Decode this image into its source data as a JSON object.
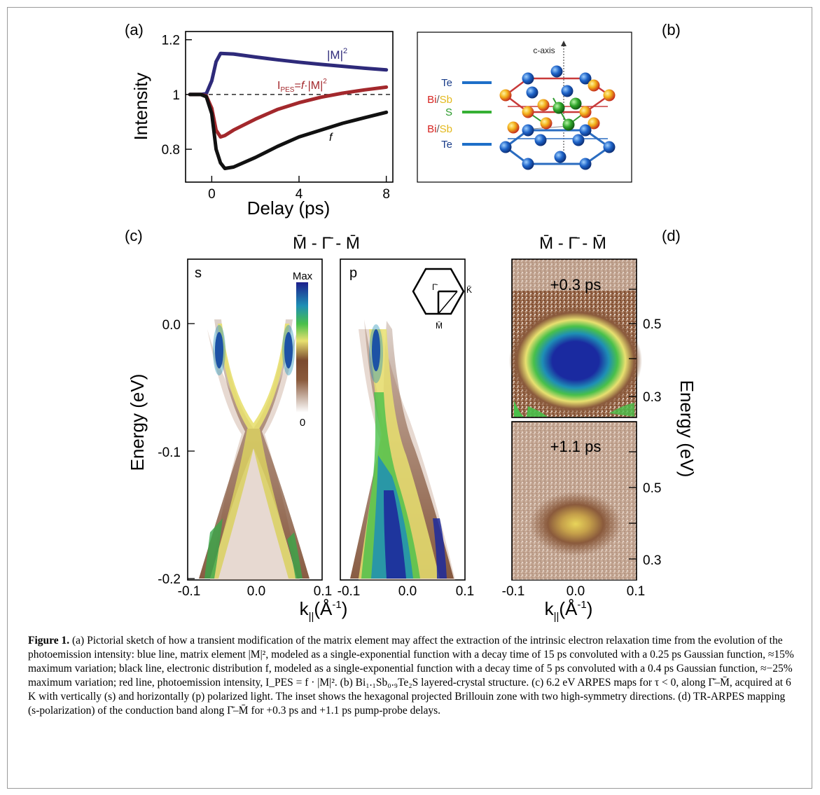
{
  "panel_a": {
    "label": "(a)",
    "ylabel": "Intensity",
    "xlabel": "Delay (ps)",
    "yticks": [
      "0.8",
      "1",
      "1.2"
    ],
    "xticks": [
      "0",
      "4",
      "8"
    ],
    "curve_labels": {
      "m2_text": "|M|",
      "m2_sup": "2",
      "ipes_main": "I",
      "ipes_sub": "PES",
      "ipes_mid": "=",
      "ipes_f": "f",
      "ipes_dot": "·",
      "ipes_m": "|M|",
      "ipes_sup": "2",
      "f": "f"
    },
    "colors": {
      "m2": "#2e2a7a",
      "ipes": "#a3282c",
      "f": "#111111"
    }
  },
  "panel_b": {
    "label": "(b)",
    "axis_label": "c-axis",
    "layers": [
      {
        "a": "Te",
        "b": ""
      },
      {
        "a": "Bi",
        "b": "Sb"
      },
      {
        "a": "S",
        "b": ""
      },
      {
        "a": "Bi",
        "b": "Sb"
      },
      {
        "a": "Te",
        "b": ""
      }
    ],
    "slash": "/"
  },
  "panel_c": {
    "label": "(c)",
    "direction": "M̄  -  Γ̄  -  M̄",
    "ylabel": "Energy (eV)",
    "yticks": [
      "0.0",
      "-0.1",
      "-0.2"
    ],
    "xticks": [
      "-0.1",
      "0.0",
      "0.1"
    ],
    "xlabel_k": "k",
    "xlabel_sub": "||",
    "xlabel_unit": "(Å",
    "xlabel_sup": "-1",
    "xlabel_end": ")",
    "pol_s": "s",
    "pol_p": "p",
    "colorbar_max": "Max",
    "colorbar_min": "0",
    "inset_gamma": "Γ̄",
    "inset_k": "K̄",
    "inset_m": "M̄"
  },
  "panel_d": {
    "label": "(d)",
    "direction": "M̄  -  Γ̄  -  M̄",
    "ylabel": "Energy (eV)",
    "yticks": [
      "0.5",
      "0.3"
    ],
    "xticks": [
      "-0.1",
      "0.0",
      "0.1"
    ],
    "delay_top": "+0.3 ps",
    "delay_bottom": "+1.1 ps"
  },
  "caption": {
    "label": "Figure 1.",
    "text": "(a) Pictorial sketch of how a transient modification of the matrix element may affect the extraction of the intrinsic electron relaxation time from the evolution of the photoemission intensity: blue line, matrix element |M|², modeled as a single-exponential function with a decay time of 15 ps convoluted with a 0.25 ps Gaussian function, ≈15% maximum variation; black line, electronic distribution f, modeled as a single-exponential function with a decay time of 5 ps convoluted with a 0.4 ps Gaussian function, ≈−25% maximum variation; red line, photoemission intensity, I_PES = f · |M|². (b) Bi₁.₁Sb₀.₉Te₂S layered-crystal structure. (c) 6.2 eV ARPES maps for τ < 0, along Γ̄–M̄, acquired at 6 K with vertically (s) and horizontally (p) polarized light. The inset shows the hexagonal projected Brillouin zone with two high-symmetry directions. (d) TR-ARPES mapping (s-polarization) of the conduction band along Γ̄–M̄ for +0.3 ps and +1.1 ps pump-probe delays."
  },
  "chart_data": [
    {
      "type": "line",
      "title": "",
      "xlabel": "Delay (ps)",
      "ylabel": "Intensity",
      "xlim": [
        -1.2,
        8.3
      ],
      "ylim": [
        0.68,
        1.23
      ],
      "xticks": [
        0,
        4,
        8
      ],
      "yticks": [
        0.8,
        1,
        1.2
      ],
      "reference_line": 1.0,
      "series": [
        {
          "name": "|M|²",
          "x": [
            -1,
            -0.5,
            -0.25,
            0,
            0.2,
            0.4,
            1,
            2,
            3,
            4,
            5,
            6,
            7,
            8
          ],
          "values": [
            1,
            1,
            1.003,
            1.05,
            1.12,
            1.15,
            1.148,
            1.137,
            1.127,
            1.118,
            1.11,
            1.103,
            1.096,
            1.09
          ]
        },
        {
          "name": "I_PES=f·|M|²",
          "x": [
            -1,
            -0.5,
            -0.25,
            0,
            0.2,
            0.4,
            0.6,
            1,
            2,
            3,
            4,
            5,
            6,
            7,
            8
          ],
          "values": [
            1,
            1,
            0.995,
            0.95,
            0.87,
            0.845,
            0.85,
            0.87,
            0.91,
            0.945,
            0.97,
            0.99,
            1.005,
            1.017,
            1.027
          ]
        },
        {
          "name": "f",
          "x": [
            -1,
            -0.5,
            -0.25,
            0,
            0.2,
            0.4,
            0.6,
            1,
            2,
            3,
            4,
            5,
            6,
            7,
            8
          ],
          "values": [
            1,
            1,
            0.992,
            0.93,
            0.8,
            0.75,
            0.73,
            0.735,
            0.77,
            0.81,
            0.845,
            0.87,
            0.895,
            0.915,
            0.935
          ]
        }
      ]
    }
  ]
}
